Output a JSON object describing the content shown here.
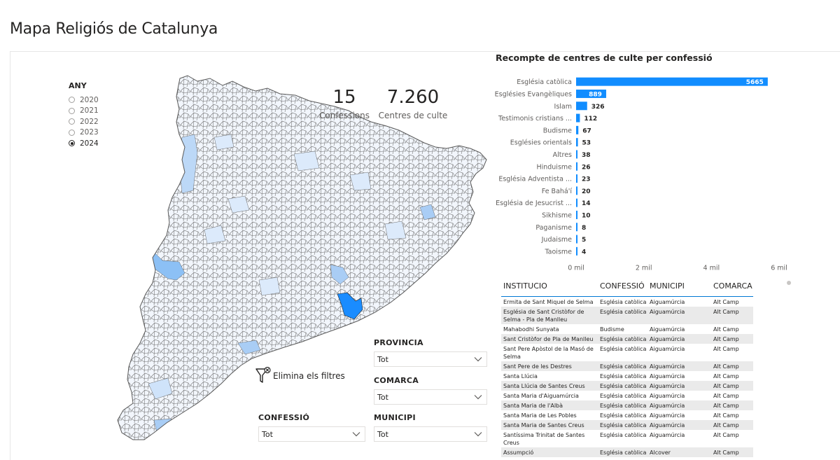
{
  "page": {
    "title": "Mapa Religiós de Catalunya"
  },
  "year_slicer": {
    "title": "ANY",
    "options": [
      "2020",
      "2021",
      "2022",
      "2023",
      "2024"
    ],
    "selected": "2024"
  },
  "kpis": {
    "confessions": {
      "value": "15",
      "label": "Confessions"
    },
    "centres": {
      "value": "7.260",
      "label": "Centres de culte"
    }
  },
  "clear_filters": {
    "label": "Elimina els filtres"
  },
  "slicers": {
    "provincia": {
      "title": "PROVINCIA",
      "value": "Tot"
    },
    "comarca": {
      "title": "COMARCA",
      "value": "Tot"
    },
    "confessio": {
      "title": "CONFESSIÓ",
      "value": "Tot"
    },
    "municipi": {
      "title": "MUNICIPI",
      "value": "Tot"
    }
  },
  "colors": {
    "accent": "#118dff",
    "map_fill": "#f2f6fc",
    "map_stroke": "#595959",
    "highlight": "#1a8cff"
  },
  "chart_data": {
    "type": "bar",
    "orientation": "horizontal",
    "title": "Recompte de centres de culte per confessió",
    "categories": [
      "Església catòlica",
      "Esglésies Evangèliques",
      "Islam",
      "Testimonis cristians ...",
      "Budisme",
      "Esglésies orientals",
      "Altres",
      "Hinduisme",
      "Església Adventista ...",
      "Fe Bahá'í",
      "Església de Jesucrist ...",
      "Sikhisme",
      "Paganisme",
      "Judaisme",
      "Taoisme"
    ],
    "values": [
      5665,
      889,
      326,
      112,
      67,
      53,
      38,
      26,
      23,
      20,
      14,
      10,
      8,
      5,
      4
    ],
    "xlim": [
      0,
      6000
    ],
    "xticks": [
      0,
      2000,
      4000,
      6000
    ],
    "xtick_labels": [
      "0 mil",
      "2 mil",
      "4 mil",
      "6 mil"
    ],
    "data_labels": true,
    "grid": false,
    "color": "#118dff"
  },
  "table": {
    "headers": [
      "INSTITUCIO",
      "CONFESSIÓ",
      "MUNICIPI",
      "COMARCA"
    ],
    "rows": [
      [
        "Ermita de Sant Miquel de Selma",
        "Església catòlica",
        "Aiguamúrcia",
        "Alt Camp"
      ],
      [
        "Església de Sant Cristòfor de Selma - Pla de Manlleu",
        "Església catòlica",
        "Aiguamúrcia",
        "Alt Camp"
      ],
      [
        "Mahabodhi Sunyata",
        "Budisme",
        "Aiguamúrcia",
        "Alt Camp"
      ],
      [
        "Sant Cristòfor de Pla de Manlleu",
        "Església catòlica",
        "Aiguamúrcia",
        "Alt Camp"
      ],
      [
        "Sant Pere Apòstol de la Masó de Selma",
        "Església catòlica",
        "Aiguamúrcia",
        "Alt Camp"
      ],
      [
        "Sant Pere de les Destres",
        "Església catòlica",
        "Aiguamúrcia",
        "Alt Camp"
      ],
      [
        "Santa Llúcia",
        "Església catòlica",
        "Aiguamúrcia",
        "Alt Camp"
      ],
      [
        "Santa Llúcia de Santes Creus",
        "Església catòlica",
        "Aiguamúrcia",
        "Alt Camp"
      ],
      [
        "Santa Maria d'Aiguamúrcia",
        "Església catòlica",
        "Aiguamúrcia",
        "Alt Camp"
      ],
      [
        "Santa Maria de l'Albà",
        "Església catòlica",
        "Aiguamúrcia",
        "Alt Camp"
      ],
      [
        "Santa Maria de Les Pobles",
        "Església catòlica",
        "Aiguamúrcia",
        "Alt Camp"
      ],
      [
        "Santa Maria de Santes Creus",
        "Església catòlica",
        "Aiguamúrcia",
        "Alt Camp"
      ],
      [
        "Santíssima Trinitat de Santes Creus",
        "Església catòlica",
        "Aiguamúrcia",
        "Alt Camp"
      ],
      [
        "Assumpció",
        "Església catòlica",
        "Alcover",
        "Alt Camp"
      ]
    ]
  }
}
